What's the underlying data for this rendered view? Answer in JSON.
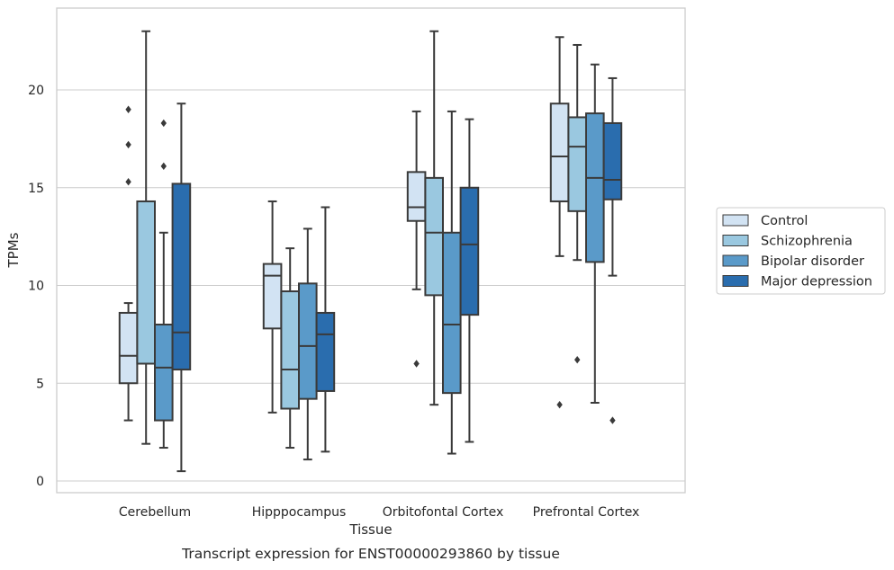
{
  "chart_data": {
    "type": "box",
    "title": "",
    "caption": "Transcript expression for ENST00000293860 by tissue",
    "xlabel": "Tissue",
    "ylabel": "TPMs",
    "ylim": [
      -0.5,
      24.3
    ],
    "yticks": [
      0,
      5,
      10,
      15,
      20
    ],
    "grid": "horizontal",
    "legend_position": "right",
    "categories": [
      "Cerebellum",
      "Hipppocampus",
      "Orbitofontal Cortex",
      "Prefrontal Cortex"
    ],
    "series": [
      {
        "name": "Control",
        "color": "#d2e3f3",
        "boxes": [
          {
            "whislo": 3.1,
            "q1": 5.0,
            "med": 6.4,
            "q3": 8.6,
            "whishi": 9.1,
            "fliers": [
              15.3,
              17.2,
              19.0
            ]
          },
          {
            "whislo": 3.5,
            "q1": 7.8,
            "med": 10.5,
            "q3": 11.1,
            "whishi": 14.3,
            "fliers": []
          },
          {
            "whislo": 9.8,
            "q1": 13.3,
            "med": 14.0,
            "q3": 15.8,
            "whishi": 18.9,
            "fliers": [
              6.0
            ]
          },
          {
            "whislo": 11.5,
            "q1": 14.3,
            "med": 16.6,
            "q3": 19.3,
            "whishi": 22.7,
            "fliers": [
              3.9
            ]
          }
        ]
      },
      {
        "name": "Schizophrenia",
        "color": "#9ac8e0",
        "boxes": [
          {
            "whislo": 1.9,
            "q1": 6.0,
            "med": 6.0,
            "q3": 14.3,
            "whishi": 23.0,
            "fliers": []
          },
          {
            "whislo": 1.7,
            "q1": 3.7,
            "med": 5.7,
            "q3": 9.7,
            "whishi": 11.9,
            "fliers": []
          },
          {
            "whislo": 3.9,
            "q1": 9.5,
            "med": 12.7,
            "q3": 15.5,
            "whishi": 23.0,
            "fliers": []
          },
          {
            "whislo": 11.3,
            "q1": 13.8,
            "med": 17.1,
            "q3": 18.6,
            "whishi": 22.3,
            "fliers": [
              6.2
            ]
          }
        ]
      },
      {
        "name": "Bipolar disorder",
        "color": "#5a9ac9",
        "boxes": [
          {
            "whislo": 1.7,
            "q1": 3.1,
            "med": 5.8,
            "q3": 8.0,
            "whishi": 12.7,
            "fliers": [
              16.1,
              18.3
            ]
          },
          {
            "whislo": 1.1,
            "q1": 4.2,
            "med": 6.9,
            "q3": 10.1,
            "whishi": 12.9,
            "fliers": []
          },
          {
            "whislo": 1.4,
            "q1": 4.5,
            "med": 8.0,
            "q3": 12.7,
            "whishi": 18.9,
            "fliers": []
          },
          {
            "whislo": 4.0,
            "q1": 11.2,
            "med": 15.5,
            "q3": 18.8,
            "whishi": 21.3,
            "fliers": []
          }
        ]
      },
      {
        "name": "Major depression",
        "color": "#2a6dae",
        "boxes": [
          {
            "whislo": 0.5,
            "q1": 5.7,
            "med": 7.6,
            "q3": 15.2,
            "whishi": 19.3,
            "fliers": []
          },
          {
            "whislo": 1.5,
            "q1": 4.6,
            "med": 7.5,
            "q3": 8.6,
            "whishi": 14.0,
            "fliers": []
          },
          {
            "whislo": 2.0,
            "q1": 8.5,
            "med": 12.1,
            "q3": 15.0,
            "whishi": 18.5,
            "fliers": []
          },
          {
            "whislo": 10.5,
            "q1": 14.4,
            "med": 15.4,
            "q3": 18.3,
            "whishi": 20.6,
            "fliers": [
              3.1
            ]
          }
        ]
      }
    ]
  }
}
